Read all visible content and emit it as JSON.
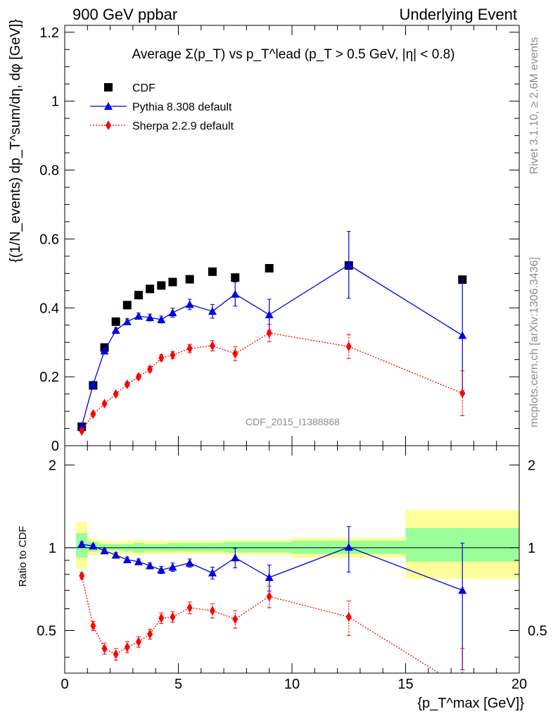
{
  "header": {
    "left": "900 GeV ppbar",
    "right": "Underlying Event"
  },
  "side_text": {
    "rivet": "Rivet 3.1.10, ≥ 2.6M events",
    "mcplots": "mcplots.cern.ch [arXiv:1306.3436]"
  },
  "chart_data": [
    {
      "type": "scatter",
      "panel": "main",
      "title": "Average Σ(p_T) vs p_T^lead (p_T > 0.5 GeV, |η| < 0.8)",
      "watermark": "CDF_2015_I1388868",
      "ylabel": "{(1/N_events) dp_T^sum/dη, dφ [GeV]}",
      "xlim": [
        0,
        20
      ],
      "ylim": [
        0,
        1.22
      ],
      "y_ticks": [
        "0",
        "0.2",
        "0.4",
        "0.6",
        "0.8",
        "1",
        "1.2"
      ],
      "legend_placement": "top-left",
      "series": [
        {
          "name": "CDF",
          "color": "#000000",
          "marker": "square",
          "x": [
            0.75,
            1.25,
            1.75,
            2.25,
            2.75,
            3.25,
            3.75,
            4.25,
            4.75,
            5.5,
            6.5,
            7.5,
            9.0,
            12.5,
            17.5
          ],
          "y": [
            0.055,
            0.175,
            0.285,
            0.36,
            0.408,
            0.437,
            0.455,
            0.465,
            0.475,
            0.483,
            0.505,
            0.488,
            0.515,
            0.523,
            0.482
          ]
        },
        {
          "name": "Pythia 8.308 default",
          "color": "#0000e0",
          "marker": "triangle",
          "x": [
            0.75,
            1.25,
            1.75,
            2.25,
            2.75,
            3.25,
            3.75,
            4.25,
            4.75,
            5.5,
            6.5,
            7.5,
            9.0,
            12.5,
            17.5
          ],
          "y": [
            0.057,
            0.178,
            0.275,
            0.335,
            0.36,
            0.376,
            0.372,
            0.366,
            0.386,
            0.41,
            0.39,
            0.44,
            0.38,
            0.525,
            0.32
          ],
          "yerr": [
            0.004,
            0.004,
            0.006,
            0.007,
            0.008,
            0.009,
            0.01,
            0.01,
            0.013,
            0.015,
            0.02,
            0.035,
            0.045,
            0.097,
            0.163
          ]
        },
        {
          "name": "Sherpa 2.2.9 default",
          "color": "#ff0000",
          "marker": "diamond",
          "x": [
            0.75,
            1.25,
            1.75,
            2.25,
            2.75,
            3.25,
            3.75,
            4.25,
            4.75,
            5.5,
            6.5,
            7.5,
            9.0,
            12.5,
            17.5
          ],
          "y": [
            0.043,
            0.092,
            0.122,
            0.15,
            0.178,
            0.2,
            0.222,
            0.255,
            0.263,
            0.282,
            0.29,
            0.267,
            0.327,
            0.288,
            0.152
          ],
          "yerr": [
            0.003,
            0.004,
            0.005,
            0.006,
            0.006,
            0.007,
            0.008,
            0.009,
            0.01,
            0.012,
            0.015,
            0.02,
            0.025,
            0.035,
            0.065
          ]
        }
      ]
    },
    {
      "type": "scatter",
      "panel": "ratio",
      "ylabel": "Ratio to CDF",
      "xlabel": "{p_T^max [GeV]}",
      "xlim": [
        0,
        20
      ],
      "ylim": [
        0.35,
        2.35
      ],
      "x_ticks": [
        "0",
        "5",
        "10",
        "15",
        "20"
      ],
      "y_ticks": [
        "0.5",
        "1",
        "2"
      ],
      "reference_line": 1,
      "uncertainty_bands": {
        "edges": [
          0.5,
          1.0,
          1.5,
          2.0,
          2.5,
          3.0,
          3.5,
          4.0,
          4.5,
          5.0,
          6.0,
          7.0,
          8.0,
          10.0,
          15.0,
          20.0
        ],
        "yellow_low": [
          0.84,
          0.94,
          0.95,
          0.95,
          0.95,
          0.94,
          0.95,
          0.95,
          0.95,
          0.95,
          0.95,
          0.94,
          0.94,
          0.92,
          0.77
        ],
        "yellow_high": [
          1.24,
          1.08,
          1.06,
          1.05,
          1.06,
          1.07,
          1.06,
          1.06,
          1.06,
          1.06,
          1.06,
          1.07,
          1.07,
          1.09,
          1.37
        ],
        "green_low": [
          0.92,
          0.97,
          0.98,
          0.98,
          0.97,
          0.96,
          0.97,
          0.97,
          0.97,
          0.97,
          0.97,
          0.96,
          0.96,
          0.95,
          0.89
        ],
        "green_high": [
          1.13,
          1.05,
          1.03,
          1.03,
          1.03,
          1.04,
          1.03,
          1.03,
          1.04,
          1.04,
          1.04,
          1.05,
          1.05,
          1.06,
          1.18
        ]
      },
      "series": [
        {
          "name": "Pythia 8.308 default",
          "color": "#0000e0",
          "marker": "triangle",
          "x": [
            0.75,
            1.25,
            1.75,
            2.25,
            2.75,
            3.25,
            3.75,
            4.25,
            4.75,
            5.5,
            6.5,
            7.5,
            9.0,
            12.5,
            17.5
          ],
          "y": [
            1.03,
            1.015,
            0.975,
            0.94,
            0.905,
            0.89,
            0.86,
            0.83,
            0.85,
            0.88,
            0.81,
            0.92,
            0.78,
            1.005,
            0.7
          ],
          "yerr": [
            0.02,
            0.015,
            0.015,
            0.02,
            0.02,
            0.02,
            0.02,
            0.025,
            0.03,
            0.03,
            0.04,
            0.075,
            0.085,
            0.19,
            0.34
          ]
        },
        {
          "name": "Sherpa 2.2.9 default",
          "color": "#ff0000",
          "marker": "diamond",
          "x": [
            0.75,
            1.25,
            1.75,
            2.25,
            2.75,
            3.25,
            3.75,
            4.25,
            4.75,
            5.5,
            6.5,
            7.5,
            9.0,
            12.5,
            17.5
          ],
          "y": [
            0.79,
            0.52,
            0.43,
            0.41,
            0.435,
            0.455,
            0.485,
            0.555,
            0.56,
            0.605,
            0.59,
            0.55,
            0.665,
            0.56,
            0.31
          ],
          "yerr": [
            0.02,
            0.02,
            0.02,
            0.02,
            0.02,
            0.02,
            0.02,
            0.025,
            0.025,
            0.03,
            0.035,
            0.04,
            0.06,
            0.08,
            0.12
          ]
        }
      ]
    }
  ]
}
